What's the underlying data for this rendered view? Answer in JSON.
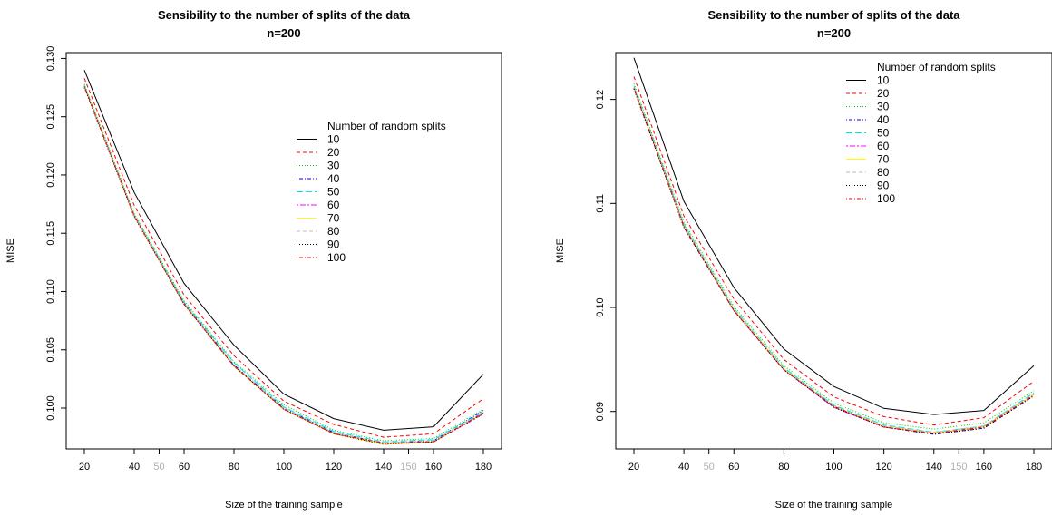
{
  "chart_data": [
    {
      "type": "line",
      "title": "Sensibility to the number of splits of the data",
      "subtitle": "n=200",
      "xlabel": "Size of the training sample",
      "ylabel": "MISE",
      "xlim": [
        20,
        180
      ],
      "ylim": [
        0.0965,
        0.1305
      ],
      "x_ticks": [
        "20",
        "40",
        "60",
        "80",
        "100",
        "120",
        "140",
        "160",
        "180"
      ],
      "x_ticks_minor": [
        "50",
        "150"
      ],
      "y_ticks": [
        "0.100",
        "0.105",
        "0.110",
        "0.115",
        "0.120",
        "0.125",
        "0.130"
      ],
      "legend_title": "Number of random splits",
      "legend_position": "center-right",
      "x": [
        20,
        40,
        60,
        80,
        100,
        120,
        140,
        160,
        180
      ],
      "series": [
        {
          "name": "10",
          "color": "#000000",
          "dash": "solid",
          "values": [
            0.129,
            0.1185,
            0.1107,
            0.1054,
            0.1012,
            0.0991,
            0.0981,
            0.0984,
            0.1029
          ]
        },
        {
          "name": "20",
          "color": "#ff0000",
          "dash": "dashed",
          "values": [
            0.1283,
            0.1174,
            0.1097,
            0.1045,
            0.1006,
            0.0986,
            0.0975,
            0.0978,
            0.1008
          ]
        },
        {
          "name": "30",
          "color": "#00cd00",
          "dash": "dotted",
          "values": [
            0.1278,
            0.1167,
            0.1092,
            0.104,
            0.1003,
            0.0981,
            0.0972,
            0.0974,
            0.0999
          ]
        },
        {
          "name": "40",
          "color": "#0000ff",
          "dash": "dotdash",
          "values": [
            0.1276,
            0.1165,
            0.109,
            0.1037,
            0.1,
            0.0979,
            0.097,
            0.0972,
            0.0998
          ]
        },
        {
          "name": "50",
          "color": "#00e5ee",
          "dash": "longdash",
          "values": [
            0.1277,
            0.1166,
            0.1091,
            0.1039,
            0.1001,
            0.098,
            0.0971,
            0.0973,
            0.0997
          ]
        },
        {
          "name": "60",
          "color": "#ff00ff",
          "dash": "twodash",
          "values": [
            0.1276,
            0.1165,
            0.1089,
            0.1036,
            0.0999,
            0.0978,
            0.0969,
            0.0971,
            0.0995
          ]
        },
        {
          "name": "70",
          "color": "#ffff00",
          "dash": "solid",
          "values": [
            0.1276,
            0.1165,
            0.1089,
            0.1036,
            0.0999,
            0.0978,
            0.0969,
            0.0971,
            0.0996
          ]
        },
        {
          "name": "80",
          "color": "#bebebe",
          "dash": "dashed",
          "values": [
            0.1276,
            0.1165,
            0.109,
            0.1037,
            0.1,
            0.0979,
            0.097,
            0.0972,
            0.0996
          ]
        },
        {
          "name": "90",
          "color": "#000000",
          "dash": "dotted",
          "values": [
            0.1275,
            0.1164,
            0.1089,
            0.1036,
            0.0999,
            0.0978,
            0.0969,
            0.0971,
            0.0995
          ]
        },
        {
          "name": "100",
          "color": "#ff0000",
          "dash": "dotdash",
          "values": [
            0.1276,
            0.1165,
            0.1089,
            0.1036,
            0.0999,
            0.0978,
            0.097,
            0.0971,
            0.0996
          ]
        }
      ],
      "grid": false
    },
    {
      "type": "line",
      "title": "Sensibility to the number of splits of the data",
      "subtitle": "n=200",
      "xlabel": "Size of the training sample",
      "ylabel": "MISE",
      "xlim": [
        20,
        180
      ],
      "ylim": [
        0.0864,
        0.1245
      ],
      "x_ticks": [
        "20",
        "40",
        "60",
        "80",
        "100",
        "120",
        "140",
        "160",
        "180"
      ],
      "x_ticks_minor": [
        "50",
        "150"
      ],
      "y_ticks": [
        "0.09",
        "0.10",
        "0.11",
        "0.12"
      ],
      "legend_title": "Number of random splits",
      "legend_position": "top-right",
      "x": [
        20,
        40,
        60,
        80,
        100,
        120,
        140,
        160,
        180
      ],
      "series": [
        {
          "name": "10",
          "color": "#000000",
          "dash": "solid",
          "values": [
            0.124,
            0.1102,
            0.1019,
            0.096,
            0.0924,
            0.0903,
            0.0897,
            0.0901,
            0.0944
          ]
        },
        {
          "name": "20",
          "color": "#ff0000",
          "dash": "dashed",
          "values": [
            0.1222,
            0.1088,
            0.1008,
            0.095,
            0.0914,
            0.0895,
            0.0887,
            0.0894,
            0.0929
          ]
        },
        {
          "name": "30",
          "color": "#00cd00",
          "dash": "dotted",
          "values": [
            0.1215,
            0.1082,
            0.1001,
            0.0944,
            0.0908,
            0.0889,
            0.0883,
            0.0889,
            0.092
          ]
        },
        {
          "name": "40",
          "color": "#0000ff",
          "dash": "dotdash",
          "values": [
            0.121,
            0.1077,
            0.0997,
            0.094,
            0.0904,
            0.0885,
            0.0878,
            0.0884,
            0.0915
          ]
        },
        {
          "name": "50",
          "color": "#00e5ee",
          "dash": "longdash",
          "values": [
            0.1213,
            0.108,
            0.0999,
            0.0942,
            0.0906,
            0.0887,
            0.088,
            0.0886,
            0.0918
          ]
        },
        {
          "name": "60",
          "color": "#ff00ff",
          "dash": "twodash",
          "values": [
            0.1211,
            0.1078,
            0.0997,
            0.094,
            0.0904,
            0.0885,
            0.0879,
            0.0885,
            0.0916
          ]
        },
        {
          "name": "70",
          "color": "#ffff00",
          "dash": "solid",
          "values": [
            0.1211,
            0.1078,
            0.0998,
            0.0941,
            0.0905,
            0.0886,
            0.0879,
            0.0885,
            0.0916
          ]
        },
        {
          "name": "80",
          "color": "#bebebe",
          "dash": "dashed",
          "values": [
            0.1212,
            0.1079,
            0.0998,
            0.0941,
            0.0905,
            0.0886,
            0.088,
            0.0886,
            0.0917
          ]
        },
        {
          "name": "90",
          "color": "#000000",
          "dash": "dotted",
          "values": [
            0.121,
            0.1077,
            0.0997,
            0.094,
            0.0904,
            0.0885,
            0.0878,
            0.0884,
            0.0915
          ]
        },
        {
          "name": "100",
          "color": "#ff0000",
          "dash": "dotdash",
          "values": [
            0.1211,
            0.1078,
            0.0997,
            0.094,
            0.0905,
            0.0885,
            0.0879,
            0.0885,
            0.0916
          ]
        }
      ],
      "grid": false
    }
  ]
}
